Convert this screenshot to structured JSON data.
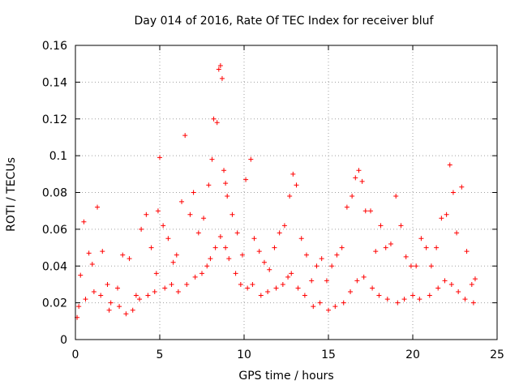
{
  "chart_data": {
    "type": "scatter",
    "title": "Day 014 of 2016, Rate Of TEC Index for receiver bluf",
    "xlabel": "GPS time / hours",
    "ylabel": "ROTI / TECUs",
    "xlim": [
      0,
      25
    ],
    "ylim": [
      0,
      0.16
    ],
    "xticks": [
      0,
      5,
      10,
      15,
      20,
      25
    ],
    "xtick_labels": [
      "0",
      "5",
      "10",
      "15",
      "20",
      "25"
    ],
    "yticks": [
      0,
      0.02,
      0.04,
      0.06,
      0.08,
      0.1,
      0.12,
      0.14,
      0.16
    ],
    "ytick_labels": [
      "0",
      "0.02",
      "0.04",
      "0.06",
      "0.08",
      "0.1",
      "0.12",
      "0.14",
      "0.16"
    ],
    "grid": true,
    "marker": "+",
    "color": "#ff0000",
    "series": [
      {
        "name": "ROTI",
        "x": [
          0.1,
          0.3,
          0.5,
          0.8,
          1.0,
          1.3,
          1.6,
          1.9,
          2.1,
          2.5,
          2.8,
          3.2,
          3.6,
          3.9,
          4.2,
          4.5,
          4.8,
          4.9,
          5.0,
          5.2,
          5.5,
          5.8,
          6.0,
          6.3,
          6.5,
          6.8,
          7.0,
          7.3,
          7.6,
          7.9,
          8.1,
          8.2,
          8.4,
          8.5,
          8.6,
          8.7,
          8.8,
          8.9,
          9.0,
          9.3,
          9.6,
          9.9,
          10.1,
          10.4,
          10.6,
          10.9,
          11.2,
          11.5,
          11.8,
          12.1,
          12.4,
          12.7,
          12.9,
          13.1,
          13.4,
          13.7,
          14.0,
          14.3,
          14.6,
          14.9,
          15.2,
          15.5,
          15.8,
          16.1,
          16.4,
          16.6,
          16.8,
          17.0,
          17.2,
          17.5,
          17.8,
          18.1,
          18.4,
          18.7,
          19.0,
          19.3,
          19.6,
          19.9,
          20.2,
          20.5,
          20.8,
          21.1,
          21.4,
          21.7,
          22.0,
          22.2,
          22.4,
          22.6,
          22.9,
          23.2,
          23.5,
          23.7,
          0.2,
          0.6,
          1.1,
          1.5,
          2.0,
          2.6,
          3.0,
          3.4,
          3.8,
          4.3,
          4.7,
          5.3,
          5.7,
          6.1,
          6.6,
          7.1,
          7.5,
          7.8,
          8.0,
          8.3,
          8.6,
          8.9,
          9.1,
          9.5,
          9.8,
          10.2,
          10.5,
          11.0,
          11.4,
          11.9,
          12.3,
          12.6,
          12.8,
          13.2,
          13.6,
          14.1,
          14.5,
          15.0,
          15.4,
          15.9,
          16.3,
          16.7,
          17.1,
          17.6,
          18.0,
          18.5,
          19.1,
          19.5,
          20.0,
          20.4,
          21.0,
          21.5,
          21.9,
          22.3,
          22.7,
          23.1,
          23.6
        ],
        "y": [
          0.012,
          0.035,
          0.064,
          0.047,
          0.041,
          0.072,
          0.048,
          0.03,
          0.02,
          0.028,
          0.046,
          0.044,
          0.024,
          0.06,
          0.068,
          0.05,
          0.036,
          0.07,
          0.099,
          0.062,
          0.055,
          0.042,
          0.046,
          0.075,
          0.111,
          0.068,
          0.08,
          0.058,
          0.066,
          0.084,
          0.098,
          0.12,
          0.118,
          0.147,
          0.149,
          0.142,
          0.092,
          0.085,
          0.078,
          0.068,
          0.058,
          0.046,
          0.087,
          0.098,
          0.055,
          0.048,
          0.042,
          0.038,
          0.05,
          0.058,
          0.062,
          0.078,
          0.09,
          0.084,
          0.055,
          0.046,
          0.032,
          0.04,
          0.044,
          0.032,
          0.04,
          0.046,
          0.05,
          0.072,
          0.078,
          0.088,
          0.092,
          0.086,
          0.07,
          0.07,
          0.048,
          0.062,
          0.05,
          0.052,
          0.078,
          0.062,
          0.045,
          0.04,
          0.04,
          0.055,
          0.05,
          0.04,
          0.05,
          0.066,
          0.068,
          0.095,
          0.08,
          0.058,
          0.083,
          0.048,
          0.03,
          0.033,
          0.018,
          0.022,
          0.026,
          0.024,
          0.016,
          0.018,
          0.014,
          0.016,
          0.022,
          0.024,
          0.026,
          0.028,
          0.03,
          0.026,
          0.03,
          0.034,
          0.036,
          0.04,
          0.044,
          0.05,
          0.056,
          0.05,
          0.044,
          0.036,
          0.03,
          0.028,
          0.03,
          0.024,
          0.026,
          0.028,
          0.03,
          0.034,
          0.036,
          0.028,
          0.024,
          0.018,
          0.02,
          0.016,
          0.018,
          0.02,
          0.026,
          0.032,
          0.034,
          0.028,
          0.024,
          0.022,
          0.02,
          0.022,
          0.024,
          0.022,
          0.024,
          0.028,
          0.032,
          0.03,
          0.026,
          0.022,
          0.02
        ]
      }
    ]
  }
}
